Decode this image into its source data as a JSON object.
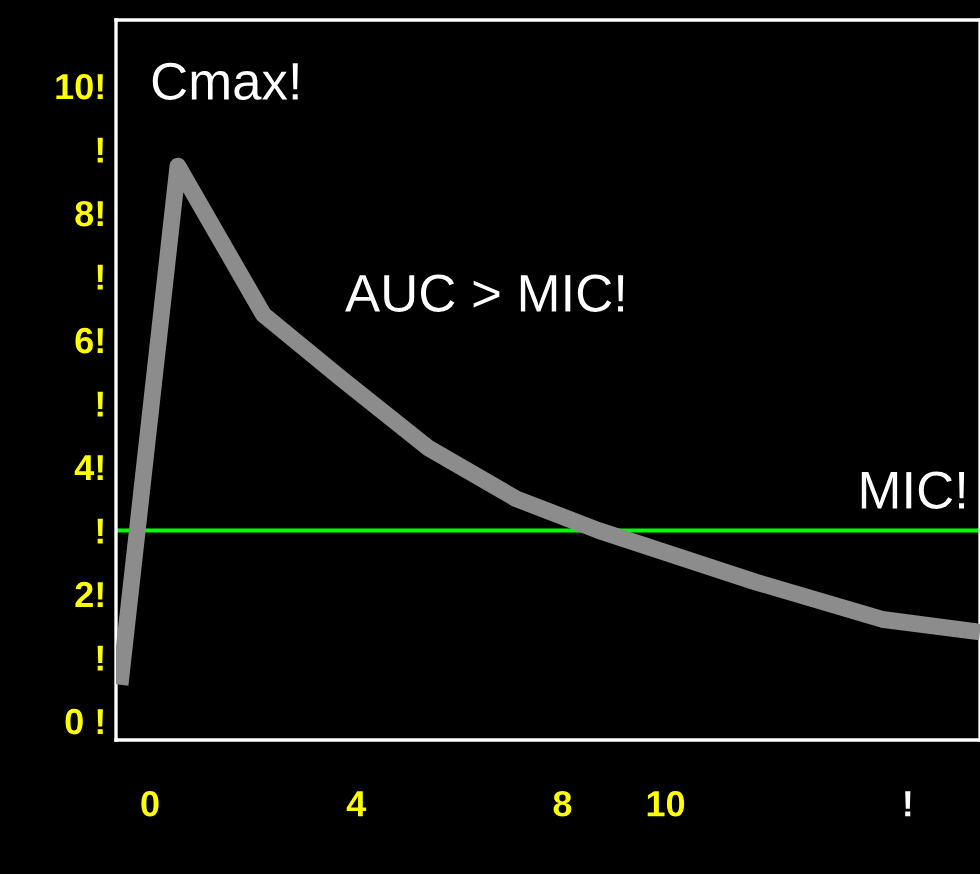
{
  "chart_data": {
    "type": "line",
    "x": [
      -0.58,
      0.54,
      2.2,
      3.7,
      5.4,
      7.1,
      8.7,
      11.7,
      14.2,
      16.1
    ],
    "series": [
      {
        "color": "#8c8c8c",
        "values": [
          0.57,
          8.74,
          6.4,
          5.4,
          4.3,
          3.5,
          3.0,
          2.2,
          1.6,
          1.4
        ]
      }
    ],
    "xlim": [
      -0.66,
      16.1
    ],
    "ylim": [
      -0.3,
      11.04
    ],
    "xticks": [
      0,
      4,
      8,
      10,
      {
        "value": 14.7,
        "label": "!"
      }
    ],
    "yticks": [
      {
        "value": 0,
        "label": "0 !"
      },
      {
        "value": 1,
        "label": "!"
      },
      {
        "value": 2,
        "label": "2!"
      },
      {
        "value": 3,
        "label": "!"
      },
      {
        "value": 4,
        "label": "4!"
      },
      {
        "value": 5,
        "label": "!"
      },
      {
        "value": 6,
        "label": "6!"
      },
      {
        "value": 7,
        "label": "!"
      },
      {
        "value": 8,
        "label": "8!"
      },
      {
        "value": 9,
        "label": "!"
      },
      {
        "value": 10,
        "label": "10!"
      }
    ],
    "ref_lines": [
      {
        "axis": "y",
        "value": 3.0,
        "color": "#00ff00"
      }
    ],
    "annotations": [
      {
        "text": "Cmax!",
        "x": 0.54,
        "y": 8.74
      },
      "AUC > MIC!",
      {
        "text": "MIC!",
        "x": 16.1,
        "y": 3.0
      }
    ],
    "grid": false,
    "legend": false,
    "marker": "none",
    "line_style": "solid"
  }
}
